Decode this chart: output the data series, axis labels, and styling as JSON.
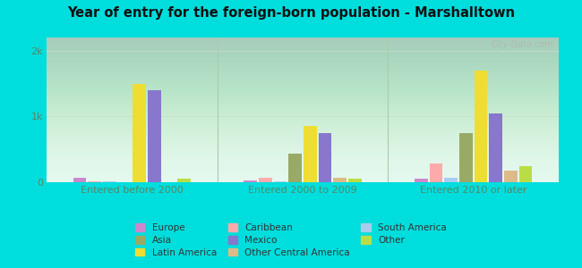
{
  "title": "Year of entry for the foreign-born population - Marshalltown",
  "categories": [
    "Entered before 2000",
    "Entered 2000 to 2009",
    "Entered 2010 or later"
  ],
  "series": {
    "Europe": [
      70,
      30,
      50
    ],
    "Caribbean": [
      15,
      70,
      280
    ],
    "South America": [
      15,
      15,
      70
    ],
    "Asia": [
      0,
      430,
      750
    ],
    "Latin America": [
      1500,
      850,
      1700
    ],
    "Mexico": [
      1400,
      750,
      1050
    ],
    "Other Central America": [
      0,
      70,
      170
    ],
    "Other": [
      50,
      50,
      250
    ]
  },
  "colors": {
    "Europe": "#cc88cc",
    "Caribbean": "#ffaaaa",
    "South America": "#aaccee",
    "Asia": "#99aa66",
    "Latin America": "#eedd33",
    "Mexico": "#8877cc",
    "Other Central America": "#ddbb88",
    "Other": "#bbdd44"
  },
  "bar_order": [
    "Europe",
    "Caribbean",
    "South America",
    "Asia",
    "Latin America",
    "Mexico",
    "Other Central America",
    "Other"
  ],
  "ylim": [
    0,
    2200
  ],
  "yticks": [
    0,
    1000,
    2000
  ],
  "ytick_labels": [
    "0",
    "1k",
    "2k"
  ],
  "plot_bg_top": "#f0fdf4",
  "plot_bg_bottom": "#d8f5e8",
  "figure_bg": "#00dddd",
  "grid_color": "#c8ddc8",
  "watermark": "City-Data.com",
  "legend_order": [
    "Europe",
    "Asia",
    "Latin America",
    "Caribbean",
    "Mexico",
    "Other Central America",
    "South America",
    "Other"
  ]
}
